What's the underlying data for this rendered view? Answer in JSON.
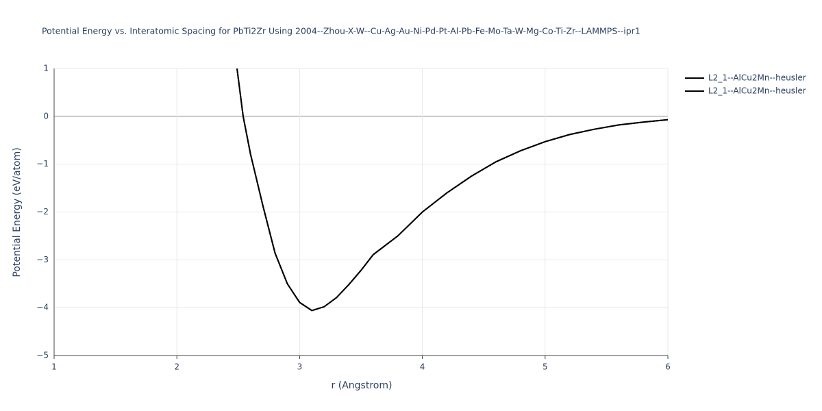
{
  "chart_data": {
    "type": "line",
    "title": "Potential Energy vs. Interatomic Spacing for PbTi2Zr Using 2004--Zhou-X-W--Cu-Ag-Au-Ni-Pd-Pt-Al-Pb-Fe-Mo-Ta-W-Mg-Co-Ti-Zr--LAMMPS--ipr1",
    "x_label": "r (Angstrom)",
    "y_label": "Potential Energy (eV/atom)",
    "x": [
      2.49,
      2.54,
      2.6,
      2.7,
      2.8,
      2.9,
      3.0,
      3.1,
      3.2,
      3.3,
      3.4,
      3.5,
      3.6,
      3.8,
      4.0,
      4.2,
      4.4,
      4.6,
      4.8,
      5.0,
      5.2,
      5.4,
      5.6,
      5.8,
      6.0
    ],
    "series": [
      {
        "name": "L2_1--AlCu2Mn--heusler",
        "color": "#000000",
        "values": [
          1.0,
          0.0,
          -0.79,
          -1.86,
          -2.86,
          -3.5,
          -3.89,
          -4.06,
          -3.98,
          -3.79,
          -3.52,
          -3.22,
          -2.89,
          -2.5,
          -2.0,
          -1.6,
          -1.25,
          -0.95,
          -0.72,
          -0.53,
          -0.38,
          -0.27,
          -0.18,
          -0.12,
          -0.07
        ]
      },
      {
        "name": "L2_1--AlCu2Mn--heusler",
        "color": "#000000",
        "values": [
          1.0,
          0.0,
          -0.79,
          -1.86,
          -2.86,
          -3.5,
          -3.89,
          -4.06,
          -3.98,
          -3.79,
          -3.52,
          -3.22,
          -2.89,
          -2.5,
          -2.0,
          -1.6,
          -1.25,
          -0.95,
          -0.72,
          -0.53,
          -0.38,
          -0.27,
          -0.18,
          -0.12,
          -0.07
        ]
      }
    ],
    "xlim": [
      1,
      6
    ],
    "xticks": [
      1,
      2,
      3,
      4,
      5,
      6
    ],
    "ylim": [
      -5,
      1
    ],
    "yticks": [
      {
        "value": -5,
        "label": "−5"
      },
      {
        "value": -4,
        "label": "−4"
      },
      {
        "value": -3,
        "label": "−3"
      },
      {
        "value": -2,
        "label": "−2"
      },
      {
        "value": -1,
        "label": "−1"
      },
      0,
      1
    ],
    "grid": true,
    "legend": "right"
  }
}
